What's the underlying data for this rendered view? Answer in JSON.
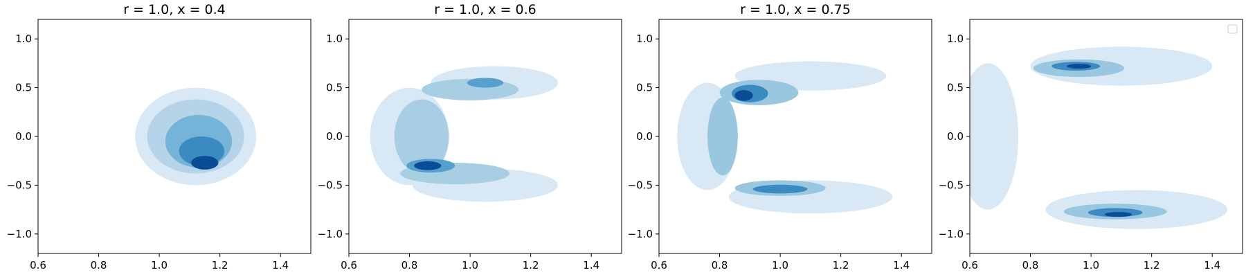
{
  "chart_data": [
    {
      "type": "contour",
      "title": "r = 1.0, x = 0.4",
      "xlim": [
        0.6,
        1.5
      ],
      "ylim": [
        -1.2,
        1.2
      ],
      "x_ticks": [
        0.6,
        0.8,
        1.0,
        1.2,
        1.4
      ],
      "y_ticks": [
        1.0,
        0.5,
        0.0,
        -0.5,
        -1.0
      ],
      "x_tick_labels": [
        "0.6",
        "0.8",
        "1.0",
        "1.2",
        "1.4"
      ],
      "y_tick_labels": [
        "1.0",
        "0.5",
        "0.0",
        "−0.5",
        "−1.0"
      ],
      "colormap": "Blues",
      "legend": false,
      "density_shapes": [
        {
          "level": 0.08,
          "cx": 1.12,
          "cy": 0.0,
          "rx": 0.2,
          "ry": 0.5
        },
        {
          "level": 0.25,
          "cx": 1.12,
          "cy": 0.0,
          "rx": 0.16,
          "ry": 0.38
        },
        {
          "level": 0.45,
          "cx": 1.13,
          "cy": -0.05,
          "rx": 0.11,
          "ry": 0.27
        },
        {
          "level": 0.65,
          "cx": 1.14,
          "cy": -0.15,
          "rx": 0.075,
          "ry": 0.15
        },
        {
          "level": 0.92,
          "cx": 1.15,
          "cy": -0.27,
          "rx": 0.045,
          "ry": 0.07
        }
      ]
    },
    {
      "type": "contour",
      "title": "r = 1.0, x = 0.6",
      "xlim": [
        0.6,
        1.5
      ],
      "ylim": [
        -1.2,
        1.2
      ],
      "x_ticks": [
        0.6,
        0.8,
        1.0,
        1.2,
        1.4
      ],
      "y_ticks": [
        1.0,
        0.5,
        0.0,
        -0.5,
        -1.0
      ],
      "x_tick_labels": [
        "0.6",
        "0.8",
        "1.0",
        "1.2",
        "1.4"
      ],
      "y_tick_labels": [
        "1.0",
        "0.5",
        "0.0",
        "−0.5",
        "−1.0"
      ],
      "colormap": "Blues",
      "legend": false,
      "density_shapes": [
        {
          "level": 0.08,
          "cx": 1.08,
          "cy": 0.55,
          "rx": 0.21,
          "ry": 0.17
        },
        {
          "level": 0.08,
          "cx": 0.8,
          "cy": 0.0,
          "rx": 0.13,
          "ry": 0.5
        },
        {
          "level": 0.08,
          "cx": 1.05,
          "cy": -0.5,
          "rx": 0.24,
          "ry": 0.17
        },
        {
          "level": 0.3,
          "cx": 1.0,
          "cy": 0.48,
          "rx": 0.16,
          "ry": 0.11
        },
        {
          "level": 0.3,
          "cx": 0.84,
          "cy": 0.0,
          "rx": 0.09,
          "ry": 0.38
        },
        {
          "level": 0.3,
          "cx": 0.95,
          "cy": -0.38,
          "rx": 0.18,
          "ry": 0.11
        },
        {
          "level": 0.55,
          "cx": 0.87,
          "cy": -0.3,
          "rx": 0.08,
          "ry": 0.07
        },
        {
          "level": 0.55,
          "cx": 1.05,
          "cy": 0.55,
          "rx": 0.06,
          "ry": 0.05
        },
        {
          "level": 0.92,
          "cx": 0.86,
          "cy": -0.3,
          "rx": 0.045,
          "ry": 0.045
        }
      ]
    },
    {
      "type": "contour",
      "title": "r = 1.0, x = 0.75",
      "xlim": [
        0.6,
        1.5
      ],
      "ylim": [
        -1.2,
        1.2
      ],
      "x_ticks": [
        0.6,
        0.8,
        1.0,
        1.2,
        1.4
      ],
      "y_ticks": [
        1.0,
        0.5,
        0.0,
        -0.5,
        -1.0
      ],
      "x_tick_labels": [
        "0.6",
        "0.8",
        "1.0",
        "1.2",
        "1.4"
      ],
      "y_tick_labels": [
        "1.0",
        "0.5",
        "0.0",
        "−0.5",
        "−1.0"
      ],
      "colormap": "Blues",
      "legend": false,
      "density_shapes": [
        {
          "level": 0.08,
          "cx": 1.1,
          "cy": 0.62,
          "rx": 0.25,
          "ry": 0.15
        },
        {
          "level": 0.08,
          "cx": 0.76,
          "cy": 0.0,
          "rx": 0.1,
          "ry": 0.55
        },
        {
          "level": 0.08,
          "cx": 1.1,
          "cy": -0.62,
          "rx": 0.27,
          "ry": 0.17
        },
        {
          "level": 0.35,
          "cx": 0.93,
          "cy": 0.45,
          "rx": 0.13,
          "ry": 0.13
        },
        {
          "level": 0.35,
          "cx": 0.81,
          "cy": 0.0,
          "rx": 0.05,
          "ry": 0.4
        },
        {
          "level": 0.35,
          "cx": 1.0,
          "cy": -0.53,
          "rx": 0.15,
          "ry": 0.08
        },
        {
          "level": 0.65,
          "cx": 0.9,
          "cy": 0.44,
          "rx": 0.06,
          "ry": 0.09
        },
        {
          "level": 0.65,
          "cx": 1.0,
          "cy": -0.54,
          "rx": 0.09,
          "ry": 0.045
        },
        {
          "level": 0.92,
          "cx": 0.88,
          "cy": 0.42,
          "rx": 0.03,
          "ry": 0.055
        }
      ]
    },
    {
      "type": "contour",
      "title": "",
      "xlim": [
        0.6,
        1.5
      ],
      "ylim": [
        -1.2,
        1.2
      ],
      "x_ticks": [
        0.6,
        0.8,
        1.0,
        1.2,
        1.4
      ],
      "y_ticks": [
        1.0,
        0.5,
        0.0,
        -0.5,
        -1.0
      ],
      "x_tick_labels": [
        "0.6",
        "0.8",
        "1.0",
        "1.2",
        "1.4"
      ],
      "y_tick_labels": [
        "1.0",
        "0.5",
        "0.0",
        "−0.5",
        "−1.0"
      ],
      "colormap": "Blues",
      "legend": true,
      "legend_location": "top-right",
      "density_shapes": [
        {
          "level": 0.08,
          "cx": 1.1,
          "cy": 0.72,
          "rx": 0.3,
          "ry": 0.2
        },
        {
          "level": 0.08,
          "cx": 0.66,
          "cy": 0.0,
          "rx": 0.1,
          "ry": 0.75
        },
        {
          "level": 0.08,
          "cx": 1.15,
          "cy": -0.75,
          "rx": 0.3,
          "ry": 0.2
        },
        {
          "level": 0.35,
          "cx": 0.96,
          "cy": 0.7,
          "rx": 0.15,
          "ry": 0.09
        },
        {
          "level": 0.35,
          "cx": 1.08,
          "cy": -0.77,
          "rx": 0.17,
          "ry": 0.08
        },
        {
          "level": 0.65,
          "cx": 0.95,
          "cy": 0.72,
          "rx": 0.08,
          "ry": 0.045
        },
        {
          "level": 0.65,
          "cx": 1.08,
          "cy": -0.78,
          "rx": 0.09,
          "ry": 0.045
        },
        {
          "level": 0.92,
          "cx": 0.96,
          "cy": 0.72,
          "rx": 0.04,
          "ry": 0.025
        },
        {
          "level": 0.92,
          "cx": 1.09,
          "cy": -0.8,
          "rx": 0.045,
          "ry": 0.025
        }
      ]
    }
  ]
}
